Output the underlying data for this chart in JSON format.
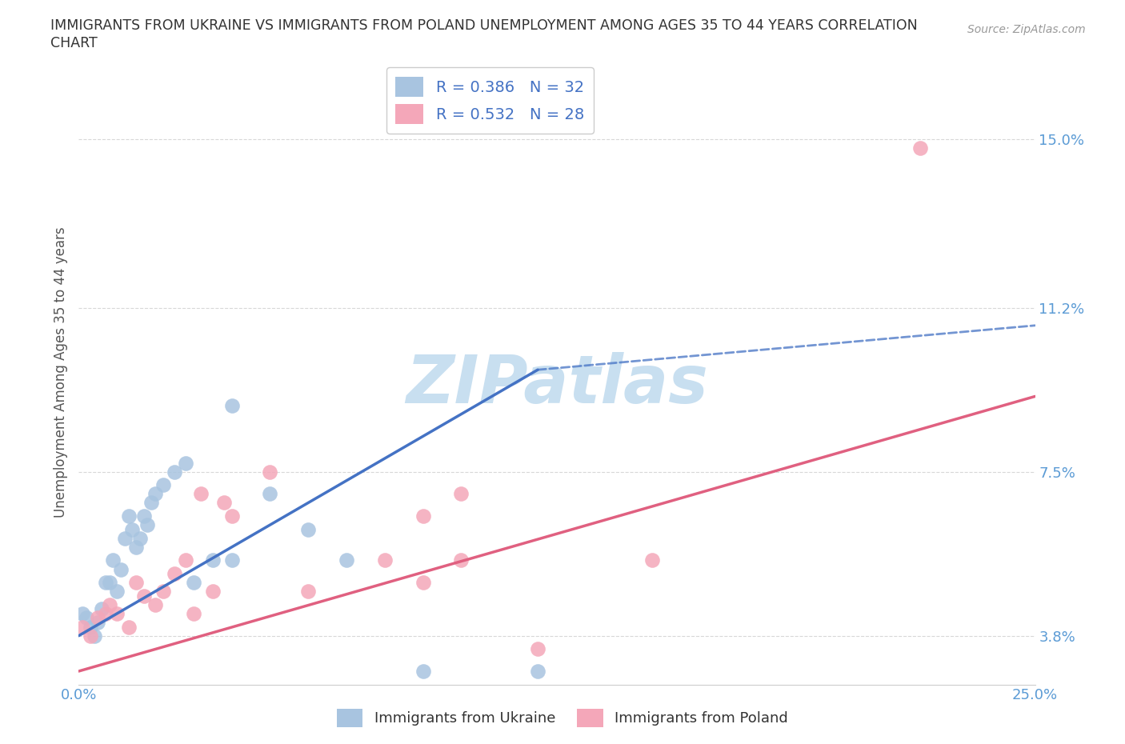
{
  "title": "IMMIGRANTS FROM UKRAINE VS IMMIGRANTS FROM POLAND UNEMPLOYMENT AMONG AGES 35 TO 44 YEARS CORRELATION\nCHART",
  "source_text": "Source: ZipAtlas.com",
  "ylabel": "Unemployment Among Ages 35 to 44 years",
  "xlim": [
    0.0,
    0.25
  ],
  "ylim": [
    0.027,
    0.168
  ],
  "ytick_positions": [
    0.038,
    0.075,
    0.112,
    0.15
  ],
  "ytick_labels": [
    "3.8%",
    "7.5%",
    "11.2%",
    "15.0%"
  ],
  "ukraine_R": 0.386,
  "ukraine_N": 32,
  "poland_R": 0.532,
  "poland_N": 28,
  "ukraine_color": "#a8c4e0",
  "poland_color": "#f4a7b9",
  "ukraine_line_color": "#4472c4",
  "poland_line_color": "#e06080",
  "ukraine_line_x0": 0.0,
  "ukraine_line_y0": 0.038,
  "ukraine_line_x1": 0.12,
  "ukraine_line_y1": 0.098,
  "ukraine_line_dash_x1": 0.25,
  "ukraine_line_dash_y1": 0.108,
  "poland_line_x0": 0.0,
  "poland_line_y0": 0.03,
  "poland_line_x1": 0.25,
  "poland_line_y1": 0.092,
  "ukraine_scatter_x": [
    0.001,
    0.002,
    0.003,
    0.004,
    0.005,
    0.006,
    0.007,
    0.008,
    0.009,
    0.01,
    0.011,
    0.012,
    0.013,
    0.014,
    0.015,
    0.016,
    0.017,
    0.018,
    0.019,
    0.02,
    0.022,
    0.025,
    0.028,
    0.03,
    0.035,
    0.04,
    0.04,
    0.05,
    0.06,
    0.07,
    0.09,
    0.12
  ],
  "ukraine_scatter_y": [
    0.043,
    0.042,
    0.04,
    0.038,
    0.041,
    0.044,
    0.05,
    0.05,
    0.055,
    0.048,
    0.053,
    0.06,
    0.065,
    0.062,
    0.058,
    0.06,
    0.065,
    0.063,
    0.068,
    0.07,
    0.072,
    0.075,
    0.077,
    0.05,
    0.055,
    0.055,
    0.09,
    0.07,
    0.062,
    0.055,
    0.03,
    0.03
  ],
  "poland_scatter_x": [
    0.001,
    0.003,
    0.005,
    0.007,
    0.008,
    0.01,
    0.013,
    0.015,
    0.017,
    0.02,
    0.022,
    0.025,
    0.028,
    0.03,
    0.032,
    0.035,
    0.038,
    0.04,
    0.05,
    0.06,
    0.08,
    0.09,
    0.09,
    0.1,
    0.1,
    0.12,
    0.15,
    0.22
  ],
  "poland_scatter_y": [
    0.04,
    0.038,
    0.042,
    0.043,
    0.045,
    0.043,
    0.04,
    0.05,
    0.047,
    0.045,
    0.048,
    0.052,
    0.055,
    0.043,
    0.07,
    0.048,
    0.068,
    0.065,
    0.075,
    0.048,
    0.055,
    0.05,
    0.065,
    0.055,
    0.07,
    0.035,
    0.055,
    0.148
  ],
  "watermark": "ZIPatlas",
  "watermark_color": "#c8dff0",
  "background_color": "#ffffff",
  "grid_color": "#d8d8d8"
}
